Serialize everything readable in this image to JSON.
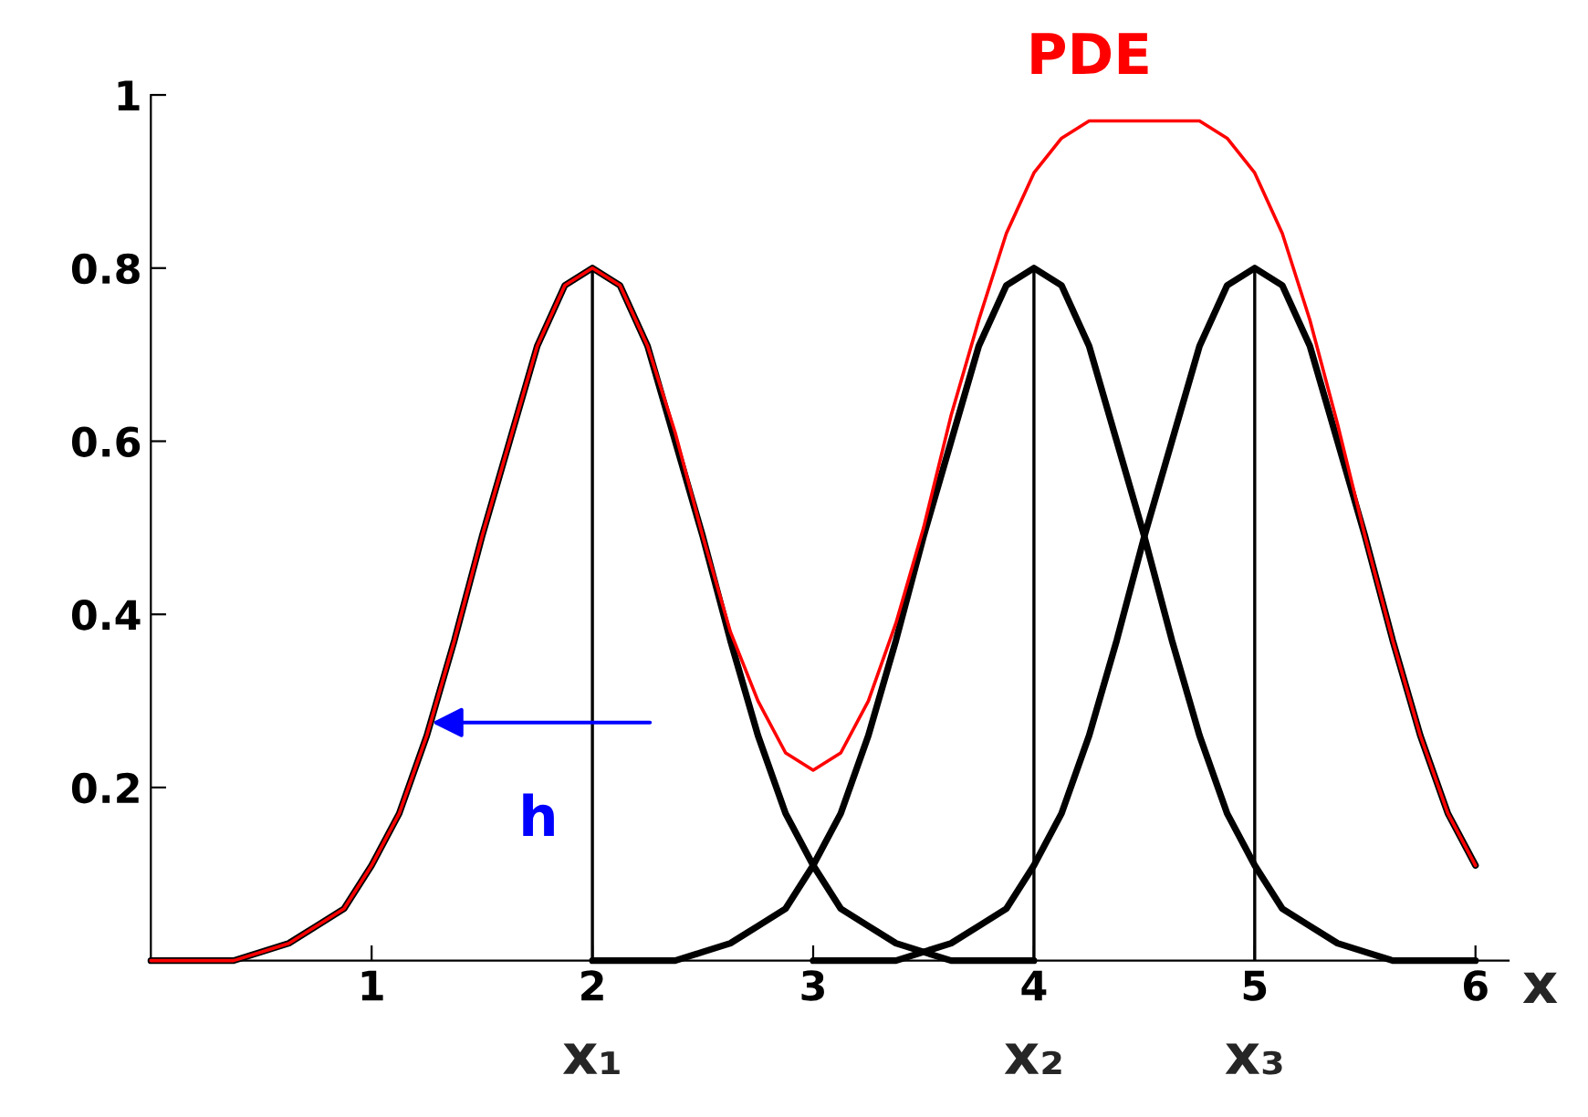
{
  "chart_data": {
    "type": "line",
    "xlabel": "x",
    "xlim": [
      0,
      6.15
    ],
    "ylim": [
      0,
      1.0
    ],
    "xticks": [
      1,
      2,
      3,
      4,
      5,
      6
    ],
    "yticks": [
      0.2,
      0.4,
      0.6,
      0.8,
      1
    ],
    "grid": false,
    "legend": false,
    "marker": "none",
    "line_style": "solid",
    "x": [
      0,
      0.125,
      0.25,
      0.375,
      0.5,
      0.625,
      0.75,
      0.875,
      1,
      1.125,
      1.25,
      1.375,
      1.5,
      1.625,
      1.75,
      1.875,
      2,
      2.125,
      2.25,
      2.375,
      2.5,
      2.625,
      2.75,
      2.875,
      3,
      3.125,
      3.25,
      3.375,
      3.5,
      3.625,
      3.75,
      3.875,
      4,
      4.125,
      4.25,
      4.375,
      4.5,
      4.625,
      4.75,
      4.875,
      5,
      5.125,
      5.25,
      5.375,
      5.5,
      5.625,
      5.75,
      5.875,
      6
    ],
    "series": [
      {
        "color": "#000000",
        "x": [
          0,
          0.125,
          0.25,
          0.375,
          0.5,
          0.625,
          0.75,
          0.875,
          1,
          1.125,
          1.25,
          1.375,
          1.5,
          1.625,
          1.75,
          1.875,
          2,
          2.125,
          2.25,
          2.375,
          2.5,
          2.625,
          2.75,
          2.875,
          3,
          3.125,
          3.25,
          3.375,
          3.5,
          3.625,
          3.75,
          3.875,
          4
        ],
        "values": [
          0,
          0,
          0,
          0,
          0.01,
          0.02,
          0.04,
          0.06,
          0.11,
          0.17,
          0.26,
          0.37,
          0.49,
          0.6,
          0.71,
          0.78,
          0.8,
          0.78,
          0.71,
          0.6,
          0.49,
          0.37,
          0.26,
          0.17,
          0.11,
          0.06,
          0.04,
          0.02,
          0.01,
          0,
          0,
          0,
          0
        ]
      },
      {
        "color": "#000000",
        "x": [
          2,
          2.125,
          2.25,
          2.375,
          2.5,
          2.625,
          2.75,
          2.875,
          3,
          3.125,
          3.25,
          3.375,
          3.5,
          3.625,
          3.75,
          3.875,
          4,
          4.125,
          4.25,
          4.375,
          4.5,
          4.625,
          4.75,
          4.875,
          5,
          5.125,
          5.25,
          5.375,
          5.5,
          5.625,
          5.75,
          5.875,
          6
        ],
        "values": [
          0,
          0,
          0,
          0,
          0.01,
          0.02,
          0.04,
          0.06,
          0.11,
          0.17,
          0.26,
          0.37,
          0.49,
          0.6,
          0.71,
          0.78,
          0.8,
          0.78,
          0.71,
          0.6,
          0.49,
          0.37,
          0.26,
          0.17,
          0.11,
          0.06,
          0.04,
          0.02,
          0.01,
          0,
          0,
          0,
          0
        ]
      },
      {
        "color": "#000000",
        "x": [
          3,
          3.125,
          3.25,
          3.375,
          3.5,
          3.625,
          3.75,
          3.875,
          4,
          4.125,
          4.25,
          4.375,
          4.5,
          4.625,
          4.75,
          4.875,
          5,
          5.125,
          5.25,
          5.375,
          5.5,
          5.625,
          5.75,
          5.875,
          6
        ],
        "values": [
          0,
          0,
          0,
          0,
          0.01,
          0.02,
          0.04,
          0.06,
          0.11,
          0.17,
          0.26,
          0.37,
          0.49,
          0.6,
          0.71,
          0.78,
          0.8,
          0.78,
          0.71,
          0.6,
          0.49,
          0.37,
          0.26,
          0.17,
          0.11
        ]
      },
      {
        "type": "bar",
        "color": "#000000",
        "x": [
          2,
          4,
          5
        ],
        "values": [
          0.8,
          0.8,
          0.8
        ]
      },
      {
        "name": "PDE",
        "color": "#ff0000",
        "values": [
          0,
          0,
          0,
          0,
          0.01,
          0.02,
          0.04,
          0.06,
          0.11,
          0.17,
          0.26,
          0.37,
          0.49,
          0.6,
          0.71,
          0.78,
          0.8,
          0.78,
          0.71,
          0.61,
          0.49,
          0.38,
          0.3,
          0.24,
          0.22,
          0.24,
          0.3,
          0.39,
          0.5,
          0.63,
          0.74,
          0.84,
          0.91,
          0.95,
          0.97,
          0.97,
          0.97,
          0.97,
          0.97,
          0.95,
          0.91,
          0.84,
          0.74,
          0.62,
          0.49,
          0.37,
          0.26,
          0.17,
          0.11
        ]
      }
    ],
    "annotations": [
      {
        "text": "x₁",
        "x": 2,
        "y": 0
      },
      {
        "text": "x₂",
        "x": 4,
        "y": 0
      },
      {
        "text": "x₃",
        "x": 5,
        "y": 0
      },
      {
        "text": "h",
        "x": 1.25,
        "y": 0.275
      }
    ]
  }
}
